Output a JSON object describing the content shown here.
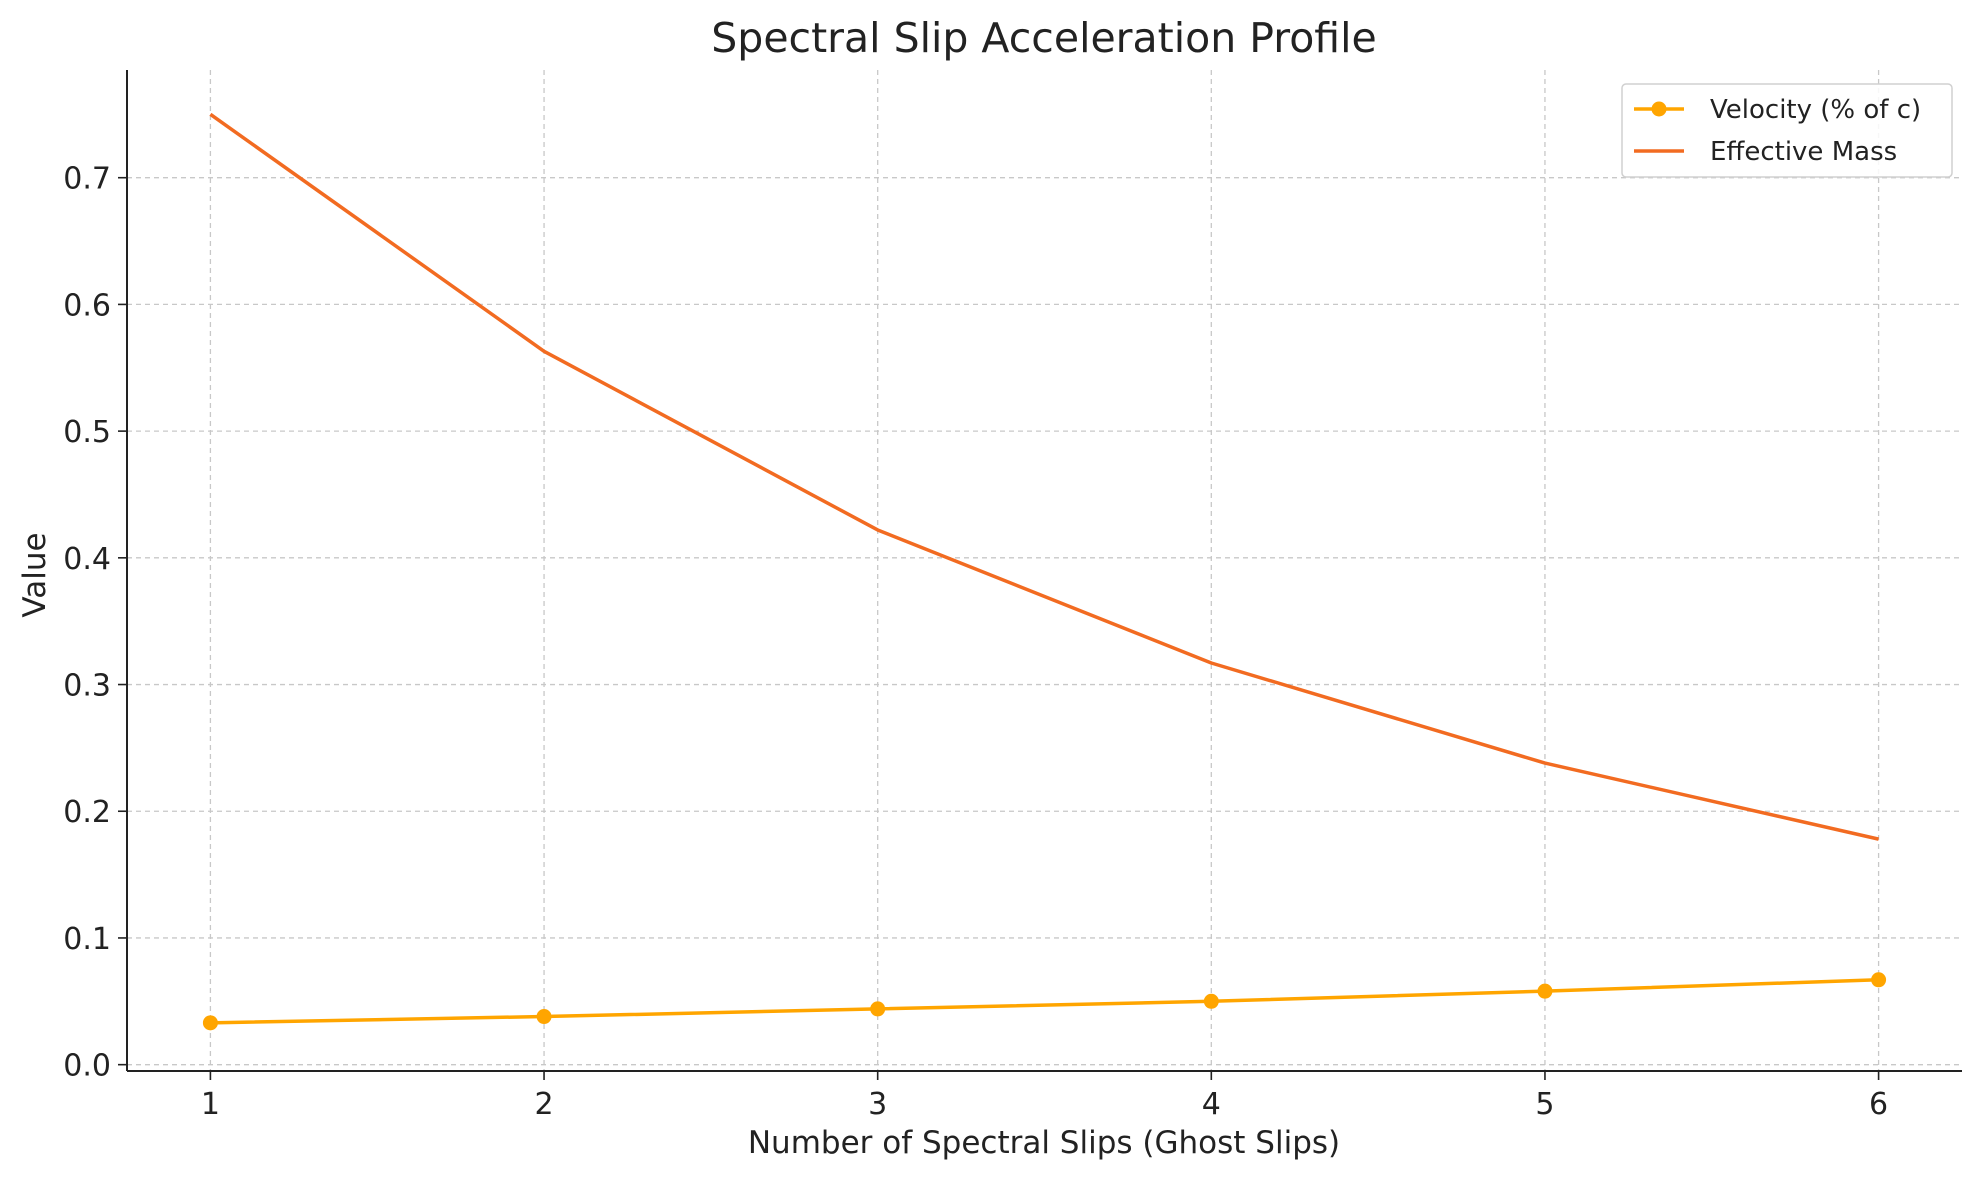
{
  "chart_data": {
    "type": "line",
    "title": "Spectral Slip Acceleration Profile",
    "xlabel": "Number of Spectral Slips (Ghost Slips)",
    "ylabel": "Value",
    "x": [
      1,
      2,
      3,
      4,
      5,
      6
    ],
    "xlim": [
      0.75,
      6.25
    ],
    "ylim": [
      -0.005,
      0.785
    ],
    "xticks": [
      1,
      2,
      3,
      4,
      5,
      6
    ],
    "yticks": [
      0.0,
      0.1,
      0.2,
      0.3,
      0.4,
      0.5,
      0.6,
      0.7
    ],
    "ytick_labels": [
      "0.0",
      "0.1",
      "0.2",
      "0.3",
      "0.4",
      "0.5",
      "0.6",
      "0.7"
    ],
    "grid": true,
    "legend_position": "top-right",
    "series": [
      {
        "name": "Velocity (% of c)",
        "color": "#FFA500",
        "marker": "circle",
        "values": [
          0.033,
          0.038,
          0.044,
          0.05,
          0.058,
          0.067
        ]
      },
      {
        "name": "Effective Mass",
        "color": "#F26B21",
        "marker": "none",
        "values": [
          0.75,
          0.563,
          0.422,
          0.317,
          0.238,
          0.178
        ]
      }
    ]
  }
}
